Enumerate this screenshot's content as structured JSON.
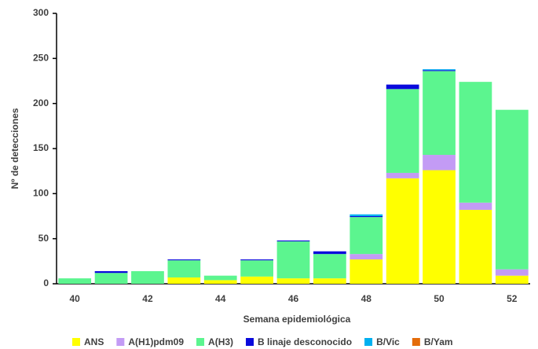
{
  "chart_data": {
    "type": "stacked_bar",
    "x_label": "Semana epidemiológica",
    "y_label": "Nº de detecciones",
    "categories": [
      "40",
      null,
      "42",
      null,
      "44",
      null,
      "46",
      null,
      "48",
      null,
      "50",
      null,
      "52"
    ],
    "series": [
      {
        "name": "ANS",
        "color": "#ffff00",
        "values": [
          0,
          0,
          0,
          7,
          4,
          8,
          6,
          6,
          27,
          117,
          126,
          82,
          9
        ]
      },
      {
        "name": "A(H1)pdm09",
        "color": "#c39bf5",
        "values": [
          0,
          0,
          0,
          0,
          0,
          0,
          0,
          0,
          6,
          6,
          17,
          8,
          7
        ]
      },
      {
        "name": "A(H3)",
        "color": "#5cf58f",
        "values": [
          6,
          12,
          14,
          19,
          5,
          18,
          41,
          27,
          41,
          93,
          93,
          134,
          177
        ]
      },
      {
        "name": "B linaje desconocido",
        "color": "#0a0adc",
        "values": [
          0,
          2,
          0,
          1,
          0,
          1,
          1,
          3,
          1,
          5,
          1,
          0,
          0
        ]
      },
      {
        "name": "B/Vic",
        "color": "#00b0f0",
        "values": [
          0,
          0,
          0,
          0,
          0,
          0,
          0,
          0,
          2,
          0,
          1,
          0,
          0
        ]
      },
      {
        "name": "B/Yam",
        "color": "#e46c0a",
        "values": [
          0,
          0,
          0,
          0,
          0,
          0,
          0,
          0,
          0,
          0,
          0,
          0,
          0
        ]
      }
    ],
    "ylim": [
      0,
      300
    ],
    "yticks": [
      0,
      50,
      100,
      150,
      200,
      250,
      300
    ],
    "grid": false
  }
}
